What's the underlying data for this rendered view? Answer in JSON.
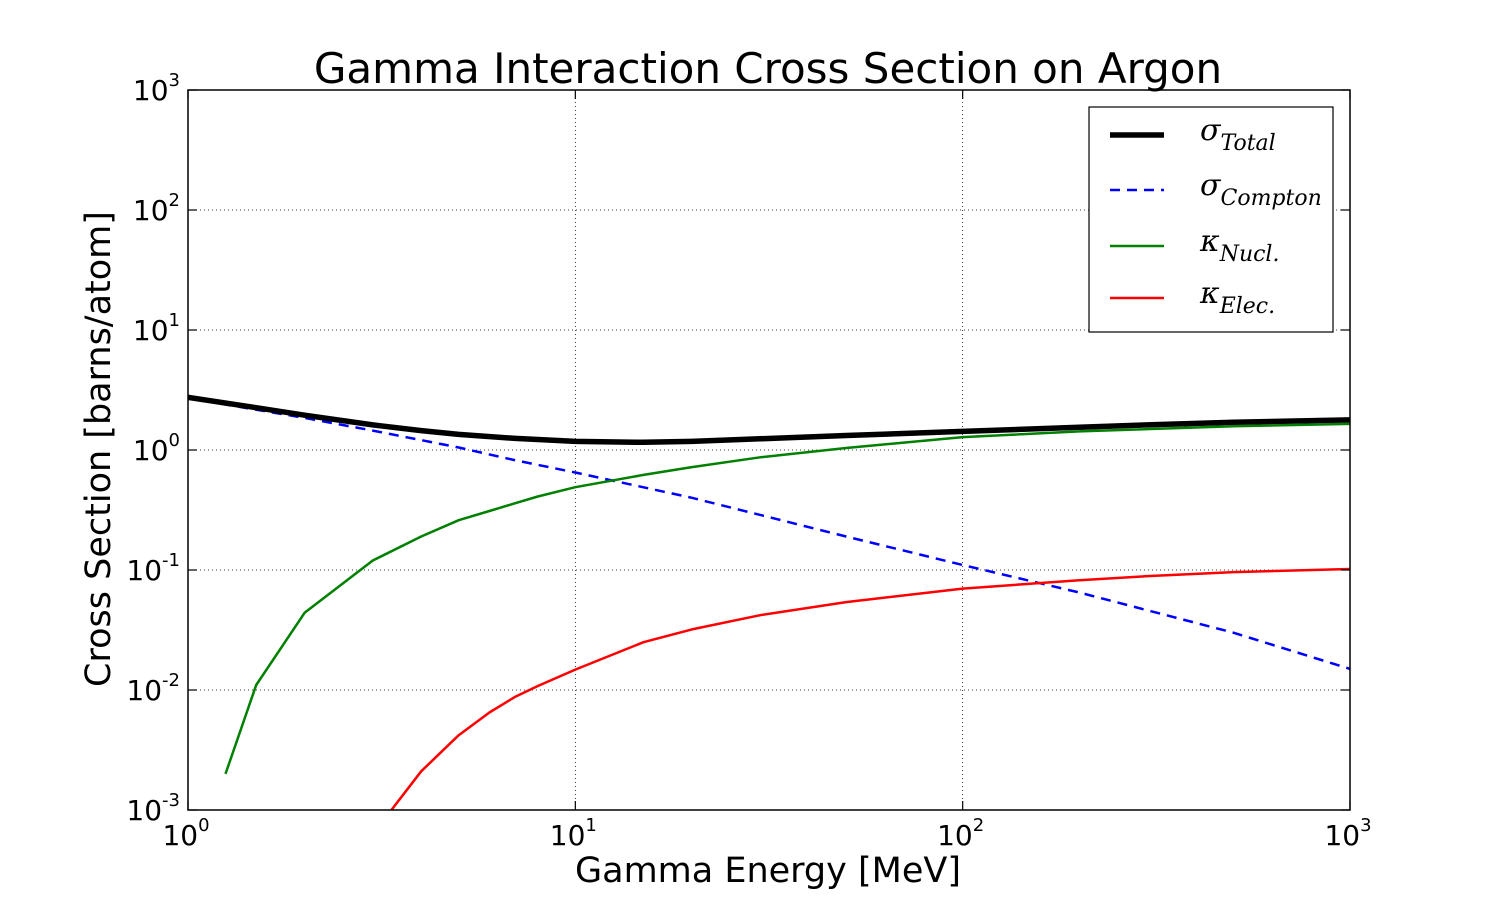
{
  "chart_data": {
    "type": "line",
    "title": "Gamma Interaction Cross Section on Argon",
    "xlabel": "Gamma Energy [MeV]",
    "ylabel": "Cross Section [barns/atom]",
    "xscale": "log",
    "yscale": "log",
    "xlim": [
      1,
      1000
    ],
    "ylim": [
      0.001,
      1000
    ],
    "grid": true,
    "legend_position": "top-right",
    "x_ticks": [
      {
        "base": "10",
        "exp": "0",
        "value": 1
      },
      {
        "base": "10",
        "exp": "1",
        "value": 10
      },
      {
        "base": "10",
        "exp": "2",
        "value": 100
      },
      {
        "base": "10",
        "exp": "3",
        "value": 1000
      }
    ],
    "y_ticks": [
      {
        "base": "10",
        "exp": "-3",
        "value": 0.001
      },
      {
        "base": "10",
        "exp": "-2",
        "value": 0.01
      },
      {
        "base": "10",
        "exp": "-1",
        "value": 0.1
      },
      {
        "base": "10",
        "exp": "0",
        "value": 1
      },
      {
        "base": "10",
        "exp": "1",
        "value": 10
      },
      {
        "base": "10",
        "exp": "2",
        "value": 100
      },
      {
        "base": "10",
        "exp": "3",
        "value": 1000
      }
    ],
    "series": [
      {
        "name_symbol": "σ",
        "name_sub": "Total",
        "color": "#000000",
        "style": "solid",
        "width": 5.5,
        "points": [
          [
            1,
            2.75
          ],
          [
            1.5,
            2.25
          ],
          [
            2,
            1.95
          ],
          [
            3,
            1.62
          ],
          [
            4,
            1.45
          ],
          [
            5,
            1.35
          ],
          [
            7,
            1.25
          ],
          [
            10,
            1.18
          ],
          [
            15,
            1.16
          ],
          [
            20,
            1.18
          ],
          [
            30,
            1.24
          ],
          [
            50,
            1.32
          ],
          [
            100,
            1.43
          ],
          [
            200,
            1.55
          ],
          [
            300,
            1.62
          ],
          [
            500,
            1.7
          ],
          [
            1000,
            1.78
          ]
        ]
      },
      {
        "name_symbol": "σ",
        "name_sub": "Compton",
        "color": "#0000ff",
        "style": "dashed",
        "width": 2.5,
        "points": [
          [
            1,
            2.7
          ],
          [
            2,
            1.85
          ],
          [
            3,
            1.45
          ],
          [
            5,
            1.05
          ],
          [
            7,
            0.82
          ],
          [
            10,
            0.65
          ],
          [
            20,
            0.4
          ],
          [
            50,
            0.19
          ],
          [
            100,
            0.11
          ],
          [
            200,
            0.065
          ],
          [
            500,
            0.03
          ],
          [
            1000,
            0.015
          ]
        ]
      },
      {
        "name_symbol": "κ",
        "name_sub": "Nucl.",
        "color": "#008000",
        "style": "solid",
        "width": 2.5,
        "points": [
          [
            1.25,
            0.002
          ],
          [
            1.5,
            0.011
          ],
          [
            2,
            0.044
          ],
          [
            3,
            0.12
          ],
          [
            4,
            0.19
          ],
          [
            5,
            0.26
          ],
          [
            6,
            0.31
          ],
          [
            7,
            0.36
          ],
          [
            8,
            0.41
          ],
          [
            10,
            0.49
          ],
          [
            15,
            0.62
          ],
          [
            20,
            0.72
          ],
          [
            30,
            0.87
          ],
          [
            50,
            1.04
          ],
          [
            100,
            1.28
          ],
          [
            200,
            1.43
          ],
          [
            500,
            1.58
          ],
          [
            1000,
            1.65
          ]
        ]
      },
      {
        "name_symbol": "κ",
        "name_sub": "Elec.",
        "color": "#ff0000",
        "style": "solid",
        "width": 2.5,
        "points": [
          [
            3.35,
            0.001
          ],
          [
            4,
            0.0021
          ],
          [
            5,
            0.0042
          ],
          [
            6,
            0.0065
          ],
          [
            7,
            0.0088
          ],
          [
            8,
            0.0108
          ],
          [
            10,
            0.0148
          ],
          [
            15,
            0.025
          ],
          [
            20,
            0.032
          ],
          [
            30,
            0.042
          ],
          [
            50,
            0.054
          ],
          [
            100,
            0.07
          ],
          [
            200,
            0.082
          ],
          [
            300,
            0.089
          ],
          [
            500,
            0.096
          ],
          [
            1000,
            0.102
          ]
        ]
      }
    ]
  }
}
